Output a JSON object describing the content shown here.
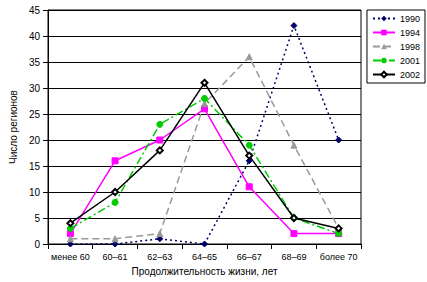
{
  "chart_data": {
    "type": "line",
    "x_label": "Продолжительность жизни, лет",
    "y_label": "Число регионов",
    "categories": [
      "менее 60",
      "60–61",
      "62–63",
      "64–65",
      "66–67",
      "68–69",
      "более 70"
    ],
    "series": [
      {
        "name": "1990",
        "color": "#000066",
        "line_style": "dotted",
        "marker": "diamond",
        "values": [
          0,
          0,
          1,
          0,
          16,
          42,
          20
        ]
      },
      {
        "name": "1994",
        "color": "#ff00ff",
        "line_style": "solid",
        "marker": "square",
        "values": [
          2,
          16,
          20,
          26,
          11,
          2,
          2
        ]
      },
      {
        "name": "1998",
        "color": "#999999",
        "line_style": "dashed",
        "marker": "triangle",
        "values": [
          1,
          1,
          2,
          27,
          36,
          19,
          3
        ]
      },
      {
        "name": "2001",
        "color": "#00cc00",
        "line_style": "dashdot",
        "marker": "circle",
        "values": [
          3,
          8,
          23,
          28,
          19,
          5,
          2
        ]
      },
      {
        "name": "2002",
        "color": "#000000",
        "line_style": "solid",
        "marker": "diamond_open",
        "values": [
          4,
          10,
          18,
          31,
          17,
          5,
          3
        ]
      }
    ],
    "ylim": [
      0,
      45
    ],
    "yticks": [
      0,
      5,
      10,
      15,
      20,
      25,
      30,
      35,
      40,
      45
    ],
    "grid": true,
    "legend": "upper right"
  }
}
